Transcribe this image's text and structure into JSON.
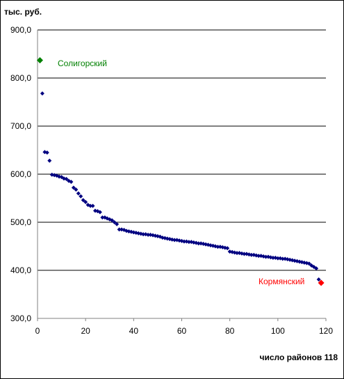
{
  "chart_data": {
    "type": "scatter",
    "title": "",
    "ylabel": "тыс. руб.",
    "xlabel": "число районов 118",
    "xlim": [
      0,
      120
    ],
    "ylim": [
      300,
      900
    ],
    "x_ticks": [
      0,
      20,
      40,
      60,
      80,
      100,
      120
    ],
    "x_tick_labels": [
      "0",
      "20",
      "40",
      "60",
      "80",
      "100",
      "120"
    ],
    "y_ticks": [
      300,
      400,
      500,
      600,
      700,
      800,
      900
    ],
    "y_tick_labels": [
      "300,0",
      "400,0",
      "500,0",
      "600,0",
      "700,0",
      "800,0",
      "900,0"
    ],
    "grid": "horizontal",
    "series": [
      {
        "color": "#000080",
        "x": [
          2,
          3,
          4,
          5,
          6,
          7,
          8,
          9,
          10,
          11,
          12,
          13,
          14,
          15,
          16,
          17,
          18,
          19,
          20,
          21,
          22,
          23,
          24,
          25,
          26,
          27,
          28,
          29,
          30,
          31,
          32,
          33,
          34,
          35,
          36,
          37,
          38,
          39,
          40,
          41,
          42,
          43,
          44,
          45,
          46,
          47,
          48,
          49,
          50,
          51,
          52,
          53,
          54,
          55,
          56,
          57,
          58,
          59,
          60,
          61,
          62,
          63,
          64,
          65,
          66,
          67,
          68,
          69,
          70,
          71,
          72,
          73,
          74,
          75,
          76,
          77,
          78,
          79,
          80,
          81,
          82,
          83,
          84,
          85,
          86,
          87,
          88,
          89,
          90,
          91,
          92,
          93,
          94,
          95,
          96,
          97,
          98,
          99,
          100,
          101,
          102,
          103,
          104,
          105,
          106,
          107,
          108,
          109,
          110,
          111,
          112,
          113,
          114,
          115,
          116,
          117
        ],
        "values": [
          768,
          646,
          645,
          628,
          599,
          598,
          597,
          595,
          594,
          591,
          590,
          586,
          584,
          572,
          568,
          560,
          554,
          546,
          542,
          536,
          534,
          534,
          524,
          523,
          521,
          510,
          510,
          508,
          506,
          504,
          500,
          496,
          485,
          485,
          484,
          482,
          481,
          480,
          479,
          478,
          477,
          476,
          475,
          475,
          474,
          474,
          473,
          472,
          471,
          470,
          468,
          467,
          466,
          465,
          464,
          463,
          463,
          462,
          461,
          460,
          460,
          459,
          459,
          458,
          457,
          456,
          456,
          455,
          454,
          453,
          452,
          451,
          450,
          449,
          449,
          448,
          447,
          446,
          439,
          438,
          437,
          436,
          436,
          435,
          434,
          434,
          433,
          432,
          432,
          431,
          430,
          430,
          429,
          428,
          428,
          427,
          426,
          426,
          425,
          425,
          424,
          424,
          423,
          422,
          421,
          420,
          419,
          418,
          417,
          416,
          415,
          414,
          410,
          407,
          404,
          381
        ]
      },
      {
        "name": "Солигорский",
        "color": "#008000",
        "x": [
          1
        ],
        "values": [
          837
        ]
      },
      {
        "name": "Кормянский",
        "color": "#ff0000",
        "x": [
          118
        ],
        "values": [
          374
        ]
      }
    ]
  }
}
